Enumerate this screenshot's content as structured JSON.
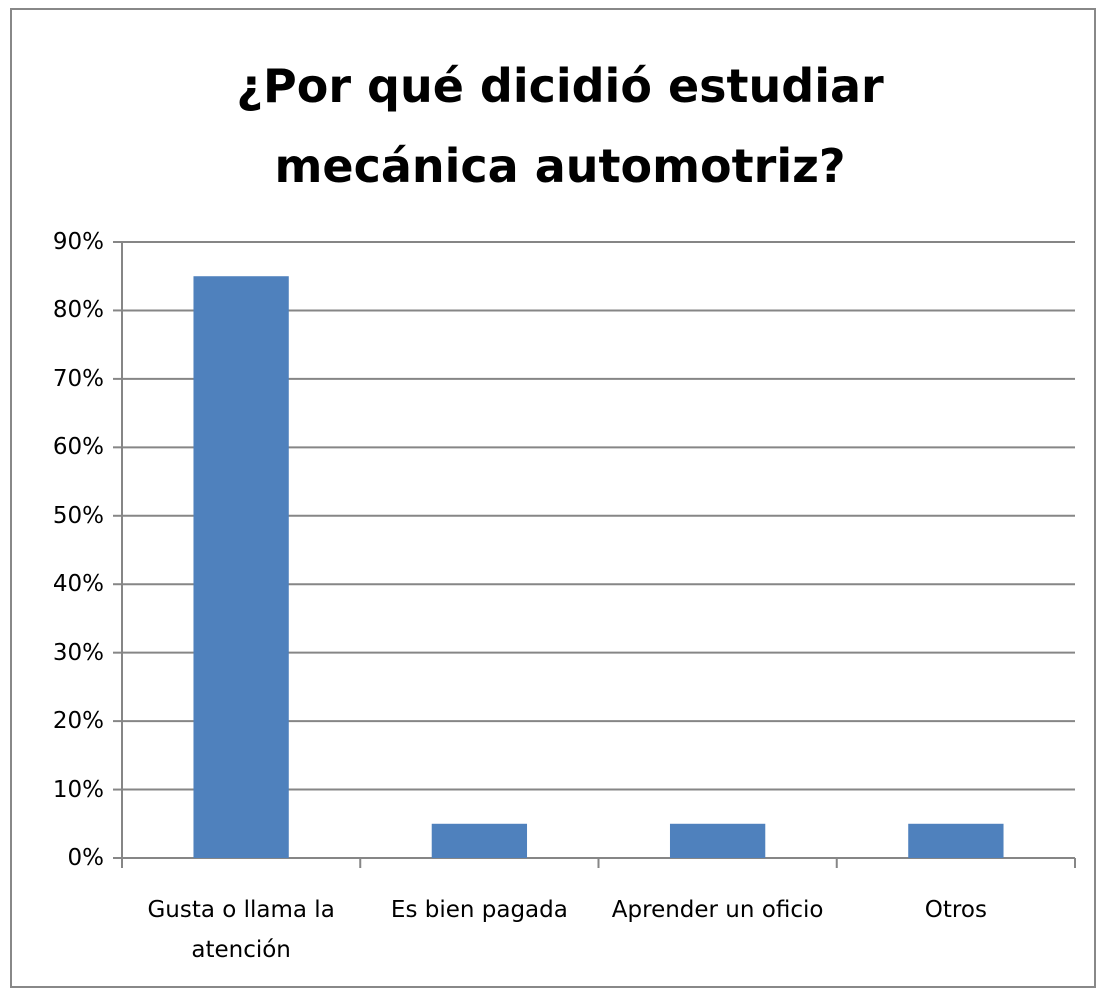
{
  "chart_data": {
    "type": "bar",
    "title": "¿Por qué dicidió estudiar mecánica automotriz?",
    "categories": [
      "Gusta o llama la atención",
      "Es bien pagada",
      "Aprender un oficio",
      "Otros"
    ],
    "values": [
      85,
      5,
      5,
      5
    ],
    "color": "#4f81bd",
    "ylim": [
      0,
      90
    ],
    "yticks": [
      {
        "value": 0,
        "label": "0%"
      },
      {
        "value": 10,
        "label": "10%"
      },
      {
        "value": 20,
        "label": "20%"
      },
      {
        "value": 30,
        "label": "30%"
      },
      {
        "value": 40,
        "label": "40%"
      },
      {
        "value": 50,
        "label": "50%"
      },
      {
        "value": 60,
        "label": "60%"
      },
      {
        "value": 70,
        "label": "70%"
      },
      {
        "value": 80,
        "label": "80%"
      },
      {
        "value": 90,
        "label": "90%"
      }
    ],
    "grid": true
  }
}
